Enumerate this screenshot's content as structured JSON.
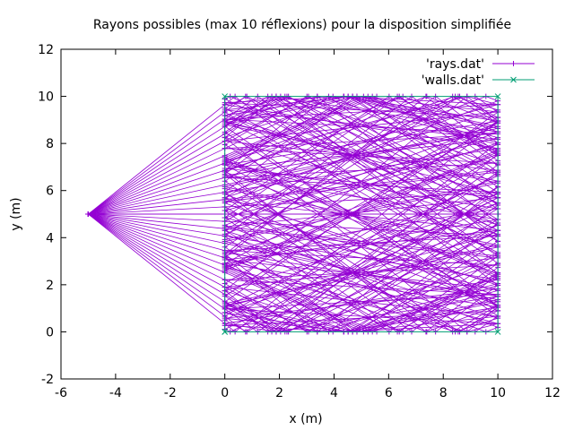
{
  "chart_data": {
    "type": "line",
    "title": "Rayons possibles (max 10 réflexions) pour la disposition simplifiée",
    "xlabel": "x (m)",
    "ylabel": "y (m)",
    "xlim": [
      -6,
      12
    ],
    "ylim": [
      -2,
      12
    ],
    "xticks": [
      -6,
      -4,
      -2,
      0,
      2,
      4,
      6,
      8,
      10,
      12
    ],
    "yticks": [
      -2,
      0,
      2,
      4,
      6,
      8,
      10,
      12
    ],
    "xtick_labels": [
      "-6",
      "-4",
      "-2",
      "0",
      "2",
      "4",
      "6",
      "8",
      "10",
      "12"
    ],
    "ytick_labels": [
      "-2",
      "0",
      "2",
      "4",
      "6",
      "8",
      "10",
      "12"
    ],
    "grid": false,
    "legend_position": "top-right",
    "series": [
      {
        "name": "'rays.dat'",
        "color": "#9400d3",
        "marker": "plus",
        "source": [
          -5,
          5
        ],
        "receiver": [
          5,
          5
        ],
        "room": [
          0,
          0,
          10,
          10
        ],
        "max_reflections": 10,
        "note_points_shown": "polylines from source (-5,5) bouncing inside the room"
      },
      {
        "name": "'walls.dat'",
        "color": "#009e73",
        "marker": "cross",
        "points": [
          [
            0,
            0
          ],
          [
            10,
            0
          ],
          [
            10,
            10
          ],
          [
            0,
            10
          ],
          [
            0,
            0
          ]
        ]
      }
    ]
  }
}
